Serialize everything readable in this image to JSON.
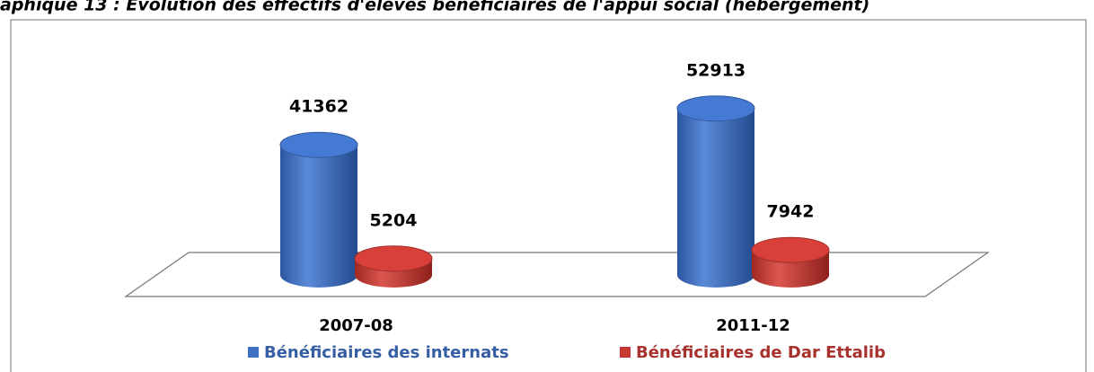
{
  "chart_data": {
    "type": "bar3d",
    "title": "aphique 13 : Evolution des effectifs d'élèves bénéficiaires de l'appui social (hébergement)",
    "categories": [
      "2007-08",
      "2011-12"
    ],
    "series": [
      {
        "name": "Bénéficiaires des internats",
        "color": "#3f6fc1",
        "values": [
          41362,
          52913
        ]
      },
      {
        "name": "Bénéficiaires de Dar Ettalib",
        "color": "#c63a35",
        "values": [
          5204,
          7942
        ]
      }
    ],
    "legend": "bottom"
  }
}
